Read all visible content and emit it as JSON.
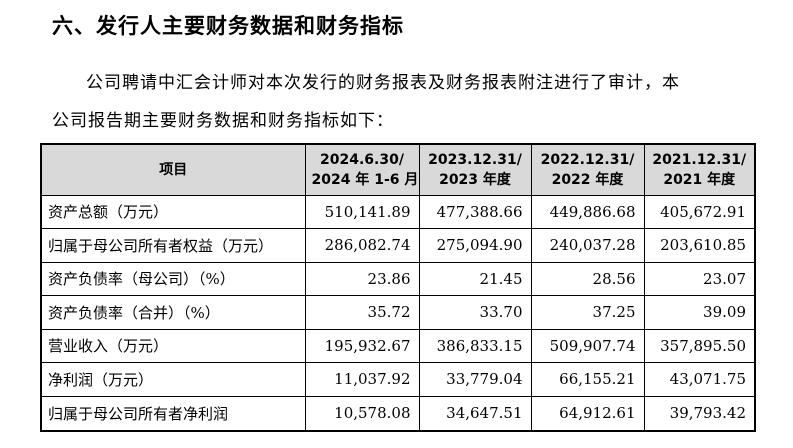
{
  "heading": "六、发行人主要财务数据和财务指标",
  "intro_line1": "公司聘请中汇会计师对本次发行的财务报表及财务报表附注进行了审计，本",
  "intro_line2": "公司报告期主要财务数据和财务指标如下：",
  "table": {
    "headers": [
      {
        "line1": "项目",
        "line2": ""
      },
      {
        "line1": "2024.6.30/",
        "line2": "2024 年 1-6 月"
      },
      {
        "line1": "2023.12.31/",
        "line2": "2023 年度"
      },
      {
        "line1": "2022.12.31/",
        "line2": "2022 年度"
      },
      {
        "line1": "2021.12.31/",
        "line2": "2021 年度"
      }
    ],
    "rows": [
      {
        "item": "资产总额（万元）",
        "values": [
          "510,141.89",
          "477,388.66",
          "449,886.68",
          "405,672.91"
        ]
      },
      {
        "item": "归属于母公司所有者权益（万元）",
        "values": [
          "286,082.74",
          "275,094.90",
          "240,037.28",
          "203,610.85"
        ]
      },
      {
        "item": "资产负债率（母公司）（%）",
        "values": [
          "23.86",
          "21.45",
          "28.56",
          "23.07"
        ]
      },
      {
        "item": "资产负债率（合并）（%）",
        "values": [
          "35.72",
          "33.70",
          "37.25",
          "39.09"
        ]
      },
      {
        "item": "营业收入（万元）",
        "values": [
          "195,932.67",
          "386,833.15",
          "509,907.74",
          "357,895.50"
        ]
      },
      {
        "item": "净利润（万元）",
        "values": [
          "11,037.92",
          "33,779.04",
          "66,155.21",
          "43,071.75"
        ]
      },
      {
        "item": "归属于母公司所有者净利润",
        "values": [
          "10,578.08",
          "34,647.51",
          "64,912.61",
          "39,793.42"
        ]
      }
    ]
  }
}
